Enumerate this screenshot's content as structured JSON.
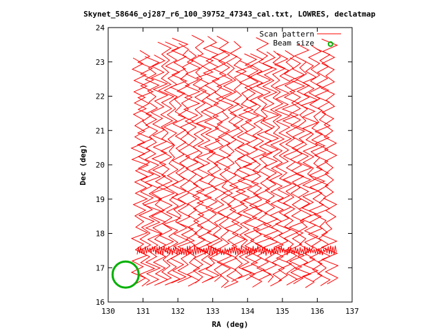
{
  "chart_data": {
    "type": "line",
    "title": "Skynet_58646_oj287_r6_100_39752_47343_cal.txt, LOWRES, declatmap",
    "xlabel": "RA (deg)",
    "ylabel": "Dec (deg)",
    "xlim": [
      130,
      137
    ],
    "ylim": [
      16,
      24
    ],
    "xticks": [
      130,
      131,
      132,
      133,
      134,
      135,
      136,
      137
    ],
    "yticks": [
      16,
      17,
      18,
      19,
      20,
      21,
      22,
      23,
      24
    ],
    "grid": false,
    "legend_position": "top-right",
    "series": [
      {
        "name": "Scan pattern",
        "color": "#ff0000",
        "pattern": "zig-zag raster scans in declination",
        "ra_range": [
          130.55,
          136.6
        ],
        "dec_range": [
          16.4,
          23.95
        ],
        "scan_count": 30,
        "crossing_dec": 17.5
      },
      {
        "name": "Beam size",
        "color": "#00b000",
        "marker": "circle",
        "legend_marker_ra": 136.38,
        "legend_marker_dec": 23.52,
        "beam_center_ra": 130.5,
        "beam_center_dec": 16.8,
        "beam_diameter_deg": 0.75
      }
    ]
  }
}
